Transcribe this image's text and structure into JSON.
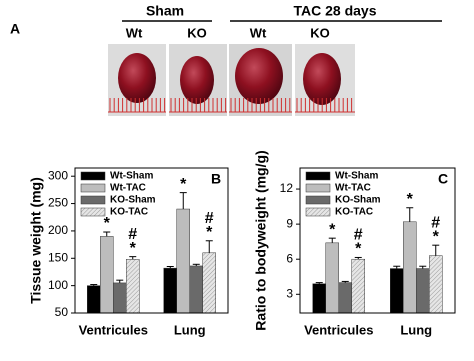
{
  "panel_a": {
    "label": "A",
    "groups": [
      "Sham",
      "TAC 28 days"
    ],
    "columns": [
      "Wt",
      "KO",
      "Wt",
      "KO"
    ]
  },
  "chart_data": [
    {
      "type": "bar",
      "panel_label": "B",
      "y_label": "Tissue weight (mg)",
      "categories": [
        "Ventricules",
        "Lung"
      ],
      "ylim": [
        50,
        315
      ],
      "yticks": [
        50,
        100,
        150,
        200,
        250,
        300
      ],
      "series": [
        {
          "name": "Wt-Sham",
          "color": "#000000",
          "values": [
            100,
            132
          ],
          "errors": [
            2,
            3
          ]
        },
        {
          "name": "Wt-TAC",
          "color": "#bdbdbd",
          "values": [
            190,
            240
          ],
          "errors": [
            8,
            30
          ],
          "significance": [
            [
              {
                "text": "*",
                "color": "#1f2f9f"
              }
            ],
            [
              {
                "text": "*",
                "color": "#1f2f9f"
              }
            ]
          ]
        },
        {
          "name": "KO-Sham",
          "color": "#6a6a6a",
          "values": [
            105,
            136
          ],
          "errors": [
            5,
            3
          ]
        },
        {
          "name": "KO-TAC",
          "color": "#dcdcdc",
          "hatch": true,
          "values": [
            148,
            160
          ],
          "errors": [
            5,
            22
          ],
          "significance": [
            [
              {
                "text": "#",
                "color": "#000000"
              },
              {
                "text": "*",
                "color": "#1f2f9f"
              }
            ],
            [
              {
                "text": "#",
                "color": "#000000"
              },
              {
                "text": "*",
                "color": "#1f2f9f"
              }
            ]
          ]
        }
      ]
    },
    {
      "type": "bar",
      "panel_label": "C",
      "y_label": "Ratio to bodyweight (mg/g)",
      "categories": [
        "Ventricules",
        "Lung"
      ],
      "ylim": [
        1.4,
        13.8
      ],
      "yticks": [
        3,
        6,
        9,
        12
      ],
      "series": [
        {
          "name": "Wt-Sham",
          "color": "#000000",
          "values": [
            3.9,
            5.2
          ],
          "errors": [
            0.1,
            0.2
          ]
        },
        {
          "name": "Wt-TAC",
          "color": "#bdbdbd",
          "values": [
            7.4,
            9.2
          ],
          "errors": [
            0.4,
            1.2
          ],
          "significance": [
            [
              {
                "text": "*",
                "color": "#1f2f9f"
              }
            ],
            [
              {
                "text": "*",
                "color": "#1f2f9f"
              }
            ]
          ]
        },
        {
          "name": "KO-Sham",
          "color": "#6a6a6a",
          "values": [
            4.0,
            5.2
          ],
          "errors": [
            0.1,
            0.2
          ]
        },
        {
          "name": "KO-TAC",
          "color": "#dcdcdc",
          "hatch": true,
          "values": [
            6.0,
            6.3
          ],
          "errors": [
            0.15,
            0.9
          ],
          "significance": [
            [
              {
                "text": "#",
                "color": "#000000"
              },
              {
                "text": "*",
                "color": "#1f2f9f"
              }
            ],
            [
              {
                "text": "#",
                "color": "#000000"
              },
              {
                "text": "*",
                "color": "#1f2f9f"
              }
            ]
          ]
        }
      ]
    }
  ]
}
